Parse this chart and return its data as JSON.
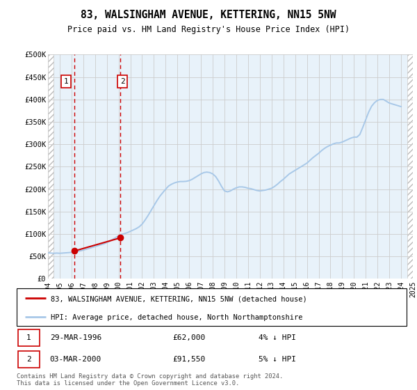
{
  "title": "83, WALSINGHAM AVENUE, KETTERING, NN15 5NW",
  "subtitle": "Price paid vs. HM Land Registry's House Price Index (HPI)",
  "ylim": [
    0,
    500000
  ],
  "yticks": [
    0,
    50000,
    100000,
    150000,
    200000,
    250000,
    300000,
    350000,
    400000,
    450000,
    500000
  ],
  "ytick_labels": [
    "£0",
    "£50K",
    "£100K",
    "£150K",
    "£200K",
    "£250K",
    "£300K",
    "£350K",
    "£400K",
    "£450K",
    "£500K"
  ],
  "hpi_color": "#a8c8e8",
  "price_color": "#cc0000",
  "grid_color": "#cccccc",
  "bg_color": "#ffffff",
  "plot_bg_color": "#d6e8f7",
  "transaction1": {
    "date": "29-MAR-1996",
    "price": 62000,
    "label": "1",
    "hpi_diff": "4% ↓ HPI"
  },
  "transaction2": {
    "date": "03-MAR-2000",
    "price": 91550,
    "label": "2",
    "hpi_diff": "5% ↓ HPI"
  },
  "legend_line1": "83, WALSINGHAM AVENUE, KETTERING, NN15 5NW (detached house)",
  "legend_line2": "HPI: Average price, detached house, North Northamptonshire",
  "footnote": "Contains HM Land Registry data © Crown copyright and database right 2024.\nThis data is licensed under the Open Government Licence v3.0.",
  "hpi_data": {
    "years": [
      1994.0,
      1994.25,
      1994.5,
      1994.75,
      1995.0,
      1995.25,
      1995.5,
      1995.75,
      1996.0,
      1996.25,
      1996.5,
      1996.75,
      1997.0,
      1997.25,
      1997.5,
      1997.75,
      1998.0,
      1998.25,
      1998.5,
      1998.75,
      1999.0,
      1999.25,
      1999.5,
      1999.75,
      2000.0,
      2000.25,
      2000.5,
      2000.75,
      2001.0,
      2001.25,
      2001.5,
      2001.75,
      2002.0,
      2002.25,
      2002.5,
      2002.75,
      2003.0,
      2003.25,
      2003.5,
      2003.75,
      2004.0,
      2004.25,
      2004.5,
      2004.75,
      2005.0,
      2005.25,
      2005.5,
      2005.75,
      2006.0,
      2006.25,
      2006.5,
      2006.75,
      2007.0,
      2007.25,
      2007.5,
      2007.75,
      2008.0,
      2008.25,
      2008.5,
      2008.75,
      2009.0,
      2009.25,
      2009.5,
      2009.75,
      2010.0,
      2010.25,
      2010.5,
      2010.75,
      2011.0,
      2011.25,
      2011.5,
      2011.75,
      2012.0,
      2012.25,
      2012.5,
      2012.75,
      2013.0,
      2013.25,
      2013.5,
      2013.75,
      2014.0,
      2014.25,
      2014.5,
      2014.75,
      2015.0,
      2015.25,
      2015.5,
      2015.75,
      2016.0,
      2016.25,
      2016.5,
      2016.75,
      2017.0,
      2017.25,
      2017.5,
      2017.75,
      2018.0,
      2018.25,
      2018.5,
      2018.75,
      2019.0,
      2019.25,
      2019.5,
      2019.75,
      2020.0,
      2020.25,
      2020.5,
      2020.75,
      2021.0,
      2021.25,
      2021.5,
      2021.75,
      2022.0,
      2022.25,
      2022.5,
      2022.75,
      2023.0,
      2023.25,
      2023.5,
      2023.75,
      2024.0
    ],
    "values": [
      58000,
      57500,
      57000,
      57500,
      57000,
      57500,
      58000,
      58500,
      59000,
      60000,
      61000,
      62500,
      64000,
      66000,
      68000,
      70000,
      72000,
      74000,
      76000,
      78000,
      81000,
      84000,
      88000,
      92000,
      96000,
      99000,
      101000,
      103000,
      106000,
      109000,
      112000,
      116000,
      122000,
      131000,
      141000,
      152000,
      163000,
      174000,
      184000,
      192000,
      200000,
      207000,
      211000,
      214000,
      216000,
      217000,
      217000,
      217500,
      219000,
      222000,
      226000,
      230000,
      234000,
      237000,
      238000,
      237000,
      234000,
      228000,
      218000,
      206000,
      196000,
      194000,
      196000,
      200000,
      203000,
      205000,
      205000,
      204000,
      202000,
      201000,
      199000,
      197000,
      196000,
      197000,
      198000,
      200000,
      202000,
      206000,
      211000,
      217000,
      222000,
      228000,
      234000,
      238000,
      242000,
      246000,
      250000,
      254000,
      258000,
      264000,
      270000,
      275000,
      280000,
      286000,
      291000,
      295000,
      298000,
      301000,
      303000,
      303000,
      305000,
      308000,
      311000,
      314000,
      316000,
      316000,
      322000,
      338000,
      355000,
      372000,
      385000,
      393000,
      398000,
      400000,
      400000,
      396000,
      392000,
      390000,
      388000,
      386000,
      384000
    ]
  },
  "price_data": {
    "years": [
      1996.23,
      2000.17
    ],
    "values": [
      62000,
      91550
    ]
  },
  "xmin": 1994,
  "xmax": 2025,
  "xticks": [
    1994,
    1995,
    1996,
    1997,
    1998,
    1999,
    2000,
    2001,
    2002,
    2003,
    2004,
    2005,
    2006,
    2007,
    2008,
    2009,
    2010,
    2011,
    2012,
    2013,
    2014,
    2015,
    2016,
    2017,
    2018,
    2019,
    2020,
    2021,
    2022,
    2023,
    2024,
    2025
  ],
  "vline1_x": 1996.23,
  "vline2_x": 2000.17
}
